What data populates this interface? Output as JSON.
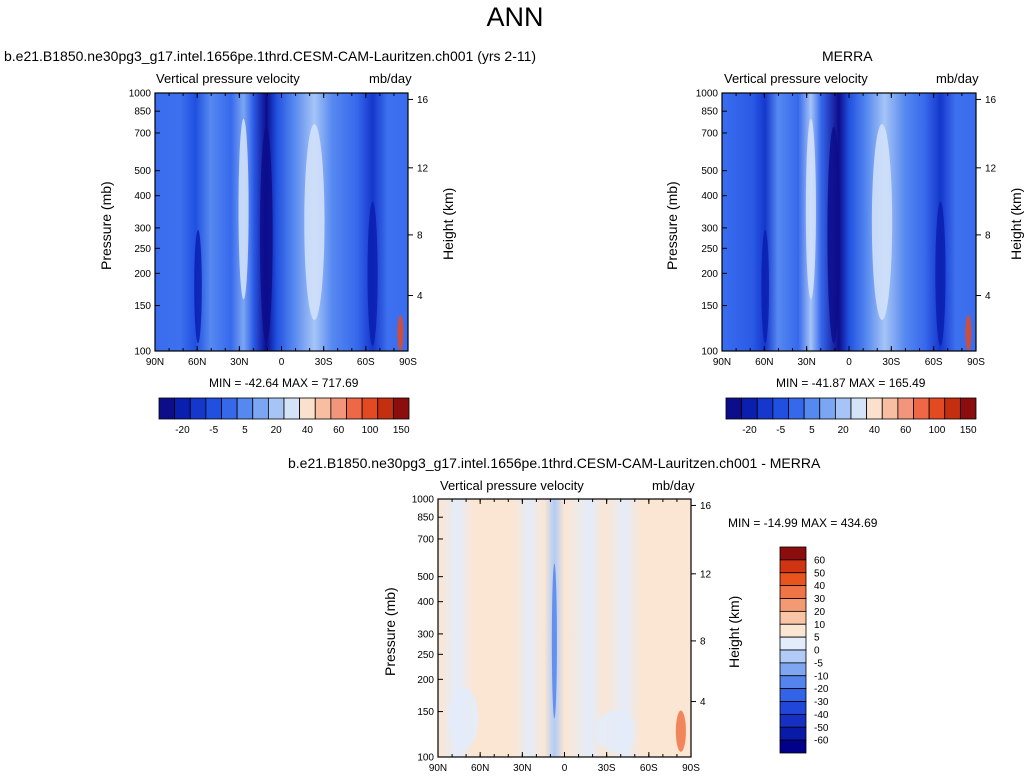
{
  "page": {
    "title": "ANN"
  },
  "panel_titles": {
    "model": "b.e21.B1850.ne30pg3_g17.intel.1656pe.1thrd.CESM-CAM-Lauritzen.ch001 (yrs 2-11)",
    "obs": "MERRA",
    "diff": "b.e21.B1850.ne30pg3_g17.intel.1656pe.1thrd.CESM-CAM-Lauritzen.ch001 - MERRA"
  },
  "labels": {
    "variable": "Vertical pressure velocity",
    "units": "mb/day",
    "ylabel_left": "Pressure (mb)",
    "ylabel_right": "Height (km)"
  },
  "stats": {
    "model": "MIN = -42.64  MAX = 717.69",
    "obs": "MIN = -41.87  MAX = 165.49",
    "diff": "MIN = -14.99  MAX = 434.69"
  },
  "colors": {
    "main_palette": [
      "#0d0d8c",
      "#0a1fb0",
      "#1537cc",
      "#2050e0",
      "#3668ec",
      "#5689f0",
      "#7ba6f3",
      "#a6c4f6",
      "#d5e3f9",
      "#fbe1cd",
      "#f8bea2",
      "#f3957a",
      "#ee6848",
      "#e44a22",
      "#c42e11",
      "#8c0d0d"
    ],
    "diff_palette": [
      "#00008a",
      "#0a1aa8",
      "#1530c2",
      "#2047d8",
      "#3363e6",
      "#5585ec",
      "#7fa6f1",
      "#b1cbf6",
      "#e3ecfa",
      "#fbe6d3",
      "#f8c6a6",
      "#f39a73",
      "#ef7446",
      "#e9531e",
      "#cf3513",
      "#8c0d0d"
    ]
  },
  "chart_data": [
    {
      "type": "heatmap",
      "name": "model",
      "x_ticks": [
        "90N",
        "60N",
        "30N",
        "0",
        "30S",
        "60S",
        "90S"
      ],
      "y_ticks": [
        "100",
        "150",
        "200",
        "250",
        "300",
        "400",
        "500",
        "700",
        "850",
        "1000"
      ],
      "y2_ticks": [
        "16",
        "12",
        "8",
        "4"
      ],
      "ylim": [
        1000,
        100
      ],
      "yscale": "log",
      "colorbar_labels": [
        "-20",
        "-5",
        "5",
        "20",
        "40",
        "60",
        "100",
        "150"
      ]
    },
    {
      "type": "heatmap",
      "name": "obs",
      "x_ticks": [
        "90N",
        "60N",
        "30N",
        "0",
        "30S",
        "60S",
        "90S"
      ],
      "y_ticks": [
        "100",
        "150",
        "200",
        "250",
        "300",
        "400",
        "500",
        "700",
        "850",
        "1000"
      ],
      "y2_ticks": [
        "16",
        "12",
        "8",
        "4"
      ],
      "ylim": [
        1000,
        100
      ],
      "yscale": "log",
      "colorbar_labels": [
        "-20",
        "-5",
        "5",
        "20",
        "40",
        "60",
        "100",
        "150"
      ]
    },
    {
      "type": "heatmap",
      "name": "diff",
      "x_ticks": [
        "90N",
        "60N",
        "30N",
        "0",
        "30S",
        "60S",
        "90S"
      ],
      "y_ticks": [
        "100",
        "150",
        "200",
        "250",
        "300",
        "400",
        "500",
        "700",
        "850",
        "1000"
      ],
      "y2_ticks": [
        "16",
        "12",
        "8",
        "4"
      ],
      "ylim": [
        1000,
        100
      ],
      "yscale": "log",
      "colorbar_labels": [
        "60",
        "50",
        "40",
        "30",
        "20",
        "10",
        "5",
        "0",
        "-5",
        "-10",
        "-20",
        "-30",
        "-40",
        "-50",
        "-60"
      ]
    }
  ]
}
